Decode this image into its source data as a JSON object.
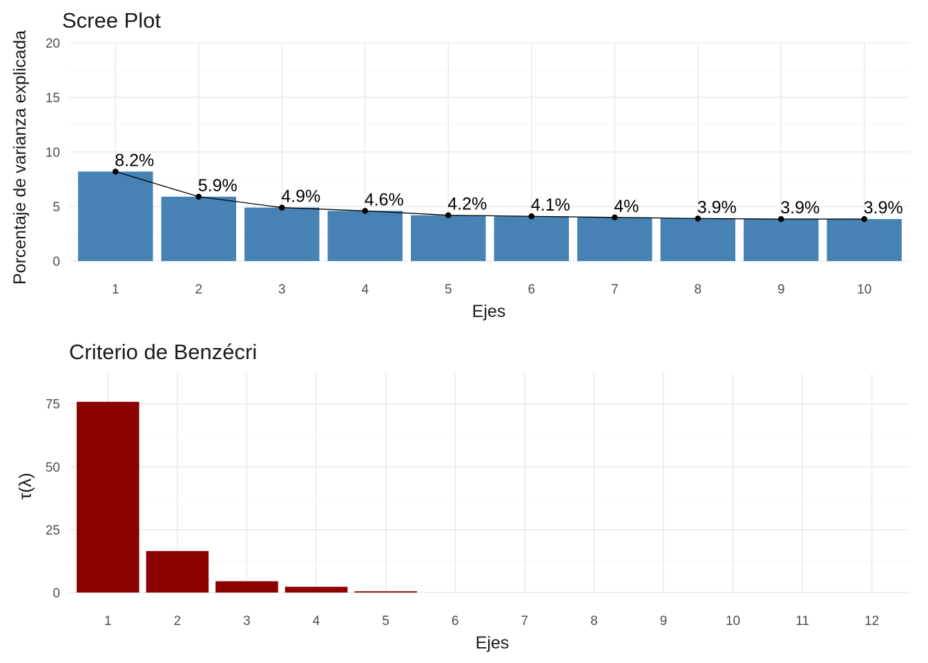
{
  "colors": {
    "scree_bar": "#4682b4",
    "benzecri_bar": "#8b0000",
    "line": "#000000"
  },
  "chart_data": [
    {
      "type": "bar",
      "overlay": "line-with-points",
      "title": "Scree Plot",
      "xlabel": "Ejes",
      "ylabel": "Porcentaje de varianza explicada",
      "categories": [
        "1",
        "2",
        "3",
        "4",
        "5",
        "6",
        "7",
        "8",
        "9",
        "10"
      ],
      "values": [
        8.2,
        5.9,
        4.9,
        4.6,
        4.2,
        4.1,
        4.0,
        3.9,
        3.85,
        3.85
      ],
      "data_labels": [
        "8.2%",
        "5.9%",
        "4.9%",
        "4.6%",
        "4.2%",
        "4.1%",
        "4%",
        "3.9%",
        "3.9%",
        "3.9%"
      ],
      "ylim": [
        0,
        20
      ],
      "yticks": [
        0,
        5,
        10,
        15,
        20
      ],
      "grid": true,
      "legend": "none"
    },
    {
      "type": "bar",
      "title": "Criterio de Benzécri",
      "xlabel": "Ejes",
      "ylabel": "τ(λ)",
      "categories": [
        "1",
        "2",
        "3",
        "4",
        "5",
        "6",
        "7",
        "8",
        "9",
        "10",
        "11",
        "12"
      ],
      "values": [
        75.8,
        16.5,
        4.5,
        2.3,
        0.5,
        0,
        0,
        0,
        0,
        0,
        0,
        0
      ],
      "ylim": [
        0,
        87
      ],
      "yticks": [
        0,
        25,
        50,
        75
      ],
      "grid": true,
      "legend": "none"
    }
  ]
}
